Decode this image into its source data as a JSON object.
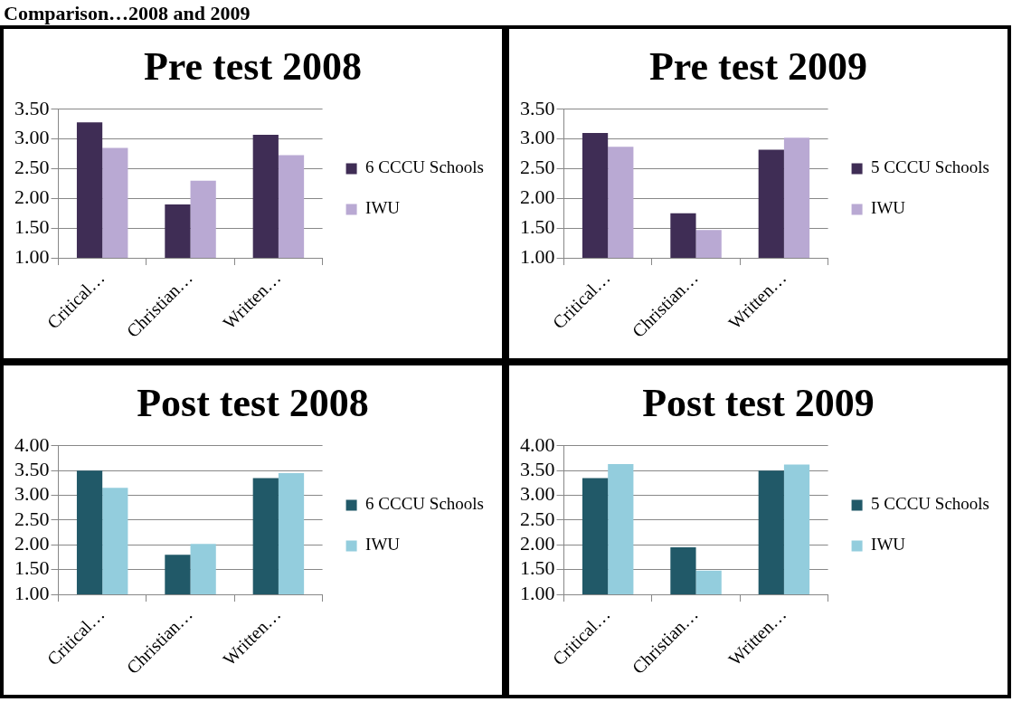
{
  "chart_data": [
    {
      "type": "bar",
      "title": "Pre test 2008",
      "annotations": [
        "Comparison…2008 and 2009"
      ],
      "categories": [
        "Critical…",
        "Christian…",
        "Written…"
      ],
      "series": [
        {
          "name": "6 CCCU Schools",
          "color": "#3f2d55",
          "values": [
            3.28,
            1.9,
            3.07
          ]
        },
        {
          "name": "IWU",
          "color": "#b9a9d3",
          "values": [
            2.85,
            2.3,
            2.73
          ]
        }
      ],
      "ylim": [
        1,
        3.5
      ],
      "yticks": [
        {
          "value": 1,
          "label": "1.00"
        },
        {
          "value": 1.5,
          "label": "1.50"
        },
        {
          "value": 2,
          "label": "2.00"
        },
        {
          "value": 2.5,
          "label": "2.50"
        },
        {
          "value": 3,
          "label": "3.00"
        },
        {
          "value": 3.5,
          "label": "3.50"
        }
      ],
      "grid": "y",
      "legend": "right"
    },
    {
      "type": "bar",
      "title": "Pre test 2009",
      "categories": [
        "Critical…",
        "Christian…",
        "Written…"
      ],
      "series": [
        {
          "name": "5 CCCU Schools",
          "color": "#3f2d55",
          "values": [
            3.1,
            1.75,
            2.82
          ]
        },
        {
          "name": "IWU",
          "color": "#b9a9d3",
          "values": [
            2.87,
            1.47,
            3.02
          ]
        }
      ],
      "ylim": [
        1,
        3.5
      ],
      "yticks": [
        {
          "value": 1,
          "label": "1.00"
        },
        {
          "value": 1.5,
          "label": "1.50"
        },
        {
          "value": 2,
          "label": "2.00"
        },
        {
          "value": 2.5,
          "label": "2.50"
        },
        {
          "value": 3,
          "label": "3.00"
        },
        {
          "value": 3.5,
          "label": "3.50"
        }
      ],
      "grid": "y",
      "legend": "right"
    },
    {
      "type": "bar",
      "title": "Post test 2008",
      "categories": [
        "Critical…",
        "Christian…",
        "Written…"
      ],
      "series": [
        {
          "name": "6 CCCU Schools",
          "color": "#215968",
          "values": [
            3.5,
            1.8,
            3.35
          ]
        },
        {
          "name": "IWU",
          "color": "#93cddd",
          "values": [
            3.15,
            2.02,
            3.45
          ]
        }
      ],
      "ylim": [
        1,
        4
      ],
      "yticks": [
        {
          "value": 1,
          "label": "1.00"
        },
        {
          "value": 1.5,
          "label": "1.50"
        },
        {
          "value": 2,
          "label": "2.00"
        },
        {
          "value": 2.5,
          "label": "2.50"
        },
        {
          "value": 3,
          "label": "3.00"
        },
        {
          "value": 3.5,
          "label": "3.50"
        },
        {
          "value": 4,
          "label": "4.00"
        }
      ],
      "grid": "y",
      "legend": "right"
    },
    {
      "type": "bar",
      "title": "Post test 2009",
      "categories": [
        "Critical…",
        "Christian…",
        "Written…"
      ],
      "series": [
        {
          "name": "5 CCCU Schools",
          "color": "#215968",
          "values": [
            3.35,
            1.95,
            3.5
          ]
        },
        {
          "name": "IWU",
          "color": "#93cddd",
          "values": [
            3.63,
            1.48,
            3.62
          ]
        }
      ],
      "ylim": [
        1,
        4
      ],
      "yticks": [
        {
          "value": 1,
          "label": "1.00"
        },
        {
          "value": 1.5,
          "label": "1.50"
        },
        {
          "value": 2,
          "label": "2.00"
        },
        {
          "value": 2.5,
          "label": "2.50"
        },
        {
          "value": 3,
          "label": "3.00"
        },
        {
          "value": 3.5,
          "label": "3.50"
        },
        {
          "value": 4,
          "label": "4.00"
        }
      ],
      "grid": "y",
      "legend": "right"
    }
  ]
}
